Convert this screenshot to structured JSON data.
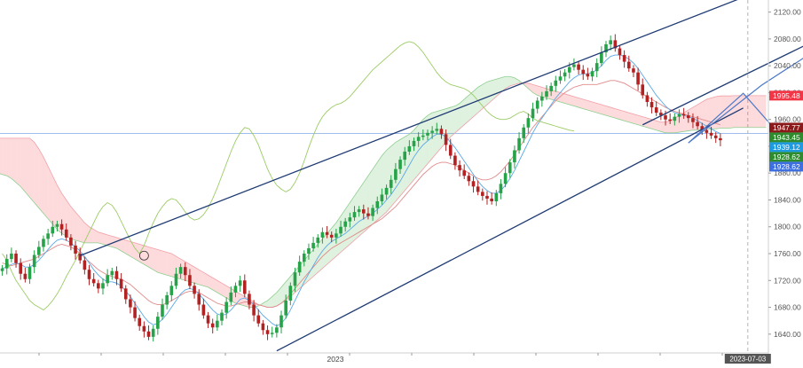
{
  "chart_data": {
    "type": "candlestick",
    "x_axis": {
      "tick_labels": [
        "2023"
      ],
      "crosshair_label": "2023-07-03"
    },
    "y_axis": {
      "ticks": [
        1640,
        1680,
        1720,
        1760,
        1800,
        1840,
        1880,
        1920,
        1960,
        2000,
        2040,
        2080,
        2120
      ],
      "tick_labels": [
        "1640.00",
        "1680.00",
        "1720.00",
        "1760.00",
        "1800.00",
        "1840.00",
        "1880.00",
        "1920.00",
        "1960.00",
        "2000.00",
        "2040.00",
        "2080.00",
        "2120.00"
      ],
      "ylim": [
        1612,
        2138
      ]
    },
    "price_tags": [
      {
        "label": "1995.48",
        "value": 1995.48,
        "color": "#f23645"
      },
      {
        "label": "1947.77",
        "value": 1947.77,
        "color": "#8b1a1a"
      },
      {
        "label": "1943.45",
        "value": 1943.45,
        "color": "#2e8b2e"
      },
      {
        "label": "1939.12",
        "value": 1939.12,
        "color": "#1e9be0"
      },
      {
        "label": "1928.62",
        "value": 1928.62,
        "color": "#2e8b2e"
      },
      {
        "label": "1928.62",
        "value": 1928.62,
        "color": "#3d6fe0"
      }
    ],
    "horizontal_line_value": 1939.12,
    "series": {
      "close": [
        1738,
        1752,
        1760,
        1746,
        1730,
        1722,
        1740,
        1758,
        1770,
        1782,
        1790,
        1800,
        1804,
        1796,
        1784,
        1772,
        1760,
        1750,
        1736,
        1722,
        1716,
        1708,
        1716,
        1728,
        1734,
        1722,
        1708,
        1692,
        1680,
        1664,
        1652,
        1644,
        1636,
        1648,
        1666,
        1684,
        1698,
        1712,
        1730,
        1740,
        1728,
        1712,
        1700,
        1684,
        1668,
        1656,
        1650,
        1660,
        1672,
        1688,
        1702,
        1712,
        1720,
        1700,
        1684,
        1668,
        1656,
        1646,
        1640,
        1642,
        1650,
        1668,
        1690,
        1712,
        1732,
        1748,
        1760,
        1768,
        1776,
        1784,
        1792,
        1788,
        1784,
        1790,
        1800,
        1808,
        1814,
        1822,
        1826,
        1820,
        1816,
        1828,
        1838,
        1848,
        1858,
        1870,
        1886,
        1900,
        1912,
        1920,
        1928,
        1934,
        1936,
        1940,
        1943,
        1946,
        1938,
        1922,
        1906,
        1892,
        1884,
        1876,
        1868,
        1860,
        1852,
        1846,
        1842,
        1838,
        1850,
        1864,
        1880,
        1896,
        1914,
        1932,
        1948,
        1962,
        1976,
        1988,
        1994,
        2002,
        2010,
        2018,
        2024,
        2030,
        2038,
        2042,
        2034,
        2028,
        2024,
        2032,
        2044,
        2060,
        2072,
        2078,
        2066,
        2056,
        2046,
        2036,
        2030,
        2012,
        1996,
        1986,
        1978,
        1970,
        1966,
        1960,
        1958,
        1964,
        1968,
        1966,
        1962,
        1956,
        1950,
        1944,
        1940,
        1936,
        1932,
        1929
      ],
      "tenkan": [
        1738,
        1740,
        1744,
        1746,
        1744,
        1740,
        1740,
        1744,
        1750,
        1758,
        1766,
        1774,
        1780,
        1782,
        1780,
        1776,
        1770,
        1764,
        1756,
        1746,
        1736,
        1728,
        1722,
        1718,
        1718,
        1716,
        1712,
        1704,
        1696,
        1686,
        1676,
        1666,
        1658,
        1654,
        1656,
        1662,
        1670,
        1680,
        1690,
        1700,
        1706,
        1708,
        1706,
        1700,
        1692,
        1684,
        1676,
        1670,
        1668,
        1670,
        1676,
        1684,
        1692,
        1694,
        1690,
        1684,
        1676,
        1668,
        1662,
        1656,
        1652,
        1656,
        1664,
        1676,
        1690,
        1704,
        1718,
        1730,
        1742,
        1754,
        1764,
        1772,
        1778,
        1782,
        1786,
        1790,
        1796,
        1802,
        1808,
        1812,
        1816,
        1820,
        1826,
        1832,
        1840,
        1848,
        1858,
        1868,
        1880,
        1892,
        1904,
        1914,
        1922,
        1928,
        1934,
        1938,
        1938,
        1934,
        1926,
        1918,
        1908,
        1898,
        1888,
        1878,
        1868,
        1860,
        1854,
        1850,
        1850,
        1854,
        1862,
        1872,
        1884,
        1898,
        1912,
        1926,
        1940,
        1952,
        1962,
        1972,
        1982,
        1992,
        2000,
        2008,
        2016,
        2022,
        2026,
        2028,
        2028,
        2030,
        2034,
        2040,
        2048,
        2054,
        2056,
        2056,
        2054,
        2050,
        2044,
        2036,
        2026,
        2016,
        2006,
        1996,
        1988,
        1980,
        1974,
        1970,
        1968,
        1966,
        1964,
        1962,
        1958,
        1954,
        1950,
        1946,
        1942,
        1939
      ],
      "kijun": [
        1746,
        1744,
        1742,
        1744,
        1746,
        1748,
        1750,
        1752,
        1756,
        1760,
        1764,
        1768,
        1772,
        1774,
        1772,
        1770,
        1766,
        1760,
        1754,
        1748,
        1742,
        1736,
        1732,
        1728,
        1726,
        1724,
        1722,
        1718,
        1714,
        1708,
        1702,
        1696,
        1690,
        1686,
        1684,
        1684,
        1686,
        1690,
        1694,
        1698,
        1702,
        1704,
        1704,
        1702,
        1698,
        1694,
        1690,
        1686,
        1684,
        1682,
        1682,
        1684,
        1686,
        1688,
        1688,
        1686,
        1684,
        1682,
        1680,
        1680,
        1682,
        1686,
        1692,
        1700,
        1708,
        1716,
        1724,
        1732,
        1740,
        1748,
        1756,
        1762,
        1768,
        1772,
        1776,
        1780,
        1784,
        1788,
        1792,
        1796,
        1800,
        1804,
        1808,
        1812,
        1818,
        1824,
        1830,
        1838,
        1846,
        1854,
        1862,
        1870,
        1878,
        1884,
        1890,
        1894,
        1896,
        1896,
        1894,
        1892,
        1888,
        1884,
        1880,
        1876,
        1872,
        1870,
        1870,
        1872,
        1876,
        1882,
        1890,
        1898,
        1908,
        1918,
        1928,
        1938,
        1948,
        1956,
        1964,
        1972,
        1980,
        1988,
        1994,
        2000,
        2004,
        2008,
        2010,
        2012,
        2012,
        2012,
        2012,
        2014,
        2016,
        2018,
        2018,
        2016,
        2014,
        2010,
        2006,
        2002,
        1998,
        1994,
        1990,
        1986,
        1982,
        1978,
        1975,
        1972,
        1970,
        1968,
        1966,
        1964,
        1962,
        1960,
        1958,
        1956,
        1954,
        1952
      ],
      "span_a": [
        1880,
        1880,
        1880,
        1878,
        1876,
        1872,
        1866,
        1860,
        1852,
        1844,
        1836,
        1828,
        1820,
        1812,
        1804,
        1796,
        1790,
        1786,
        1782,
        1780,
        1778,
        1776,
        1776,
        1776,
        1776,
        1774,
        1772,
        1770,
        1768,
        1764,
        1760,
        1756,
        1752,
        1748,
        1744,
        1740,
        1736,
        1732,
        1730,
        1728,
        1726,
        1724,
        1722,
        1720,
        1718,
        1716,
        1714,
        1712,
        1710,
        1706,
        1702,
        1698,
        1694,
        1690,
        1686,
        1684,
        1682,
        1680,
        1680,
        1682,
        1686,
        1690,
        1696,
        1702,
        1710,
        1718,
        1726,
        1734,
        1742,
        1750,
        1758,
        1766,
        1774,
        1782,
        1790,
        1798,
        1806,
        1816,
        1826,
        1836,
        1846,
        1856,
        1866,
        1876,
        1886,
        1896,
        1906,
        1914,
        1920,
        1926,
        1930,
        1934,
        1938,
        1944,
        1952,
        1960,
        1966,
        1970,
        1972,
        1974,
        1976,
        1978,
        1980,
        1984,
        1990,
        1996,
        2002,
        2008,
        2012,
        2016,
        2018,
        2020,
        2022,
        2024,
        2024,
        2022,
        2018,
        2012,
        2006,
        2000,
        1996,
        1994,
        1992,
        1990,
        1988,
        1986,
        1984,
        1982,
        1980,
        1978,
        1976,
        1974,
        1972,
        1970,
        1968,
        1966,
        1964,
        1962,
        1960,
        1958,
        1956,
        1954,
        1952,
        1950,
        1948,
        1946,
        1944,
        1942,
        1940,
        1940,
        1940,
        1941,
        1942,
        1943,
        1944,
        1944,
        1945,
        1945,
        1946,
        1946,
        1947,
        1947,
        1947,
        1948,
        1948,
        1948,
        1948,
        1948,
        1948,
        1948,
        1948
      ],
      "span_b": [
        1932,
        1932,
        1932,
        1932,
        1932,
        1932,
        1932,
        1932,
        1932,
        1932,
        1926,
        1916,
        1904,
        1890,
        1876,
        1862,
        1850,
        1840,
        1830,
        1822,
        1814,
        1806,
        1800,
        1796,
        1792,
        1790,
        1788,
        1786,
        1784,
        1782,
        1780,
        1778,
        1776,
        1774,
        1772,
        1770,
        1768,
        1766,
        1764,
        1762,
        1760,
        1756,
        1752,
        1748,
        1744,
        1740,
        1736,
        1732,
        1728,
        1724,
        1720,
        1716,
        1712,
        1708,
        1704,
        1700,
        1696,
        1692,
        1688,
        1684,
        1682,
        1680,
        1680,
        1682,
        1686,
        1690,
        1696,
        1702,
        1708,
        1714,
        1720,
        1726,
        1732,
        1738,
        1744,
        1750,
        1756,
        1762,
        1768,
        1774,
        1780,
        1786,
        1792,
        1798,
        1804,
        1810,
        1816,
        1822,
        1830,
        1838,
        1846,
        1854,
        1862,
        1870,
        1878,
        1886,
        1894,
        1902,
        1910,
        1918,
        1926,
        1934,
        1940,
        1946,
        1952,
        1958,
        1964,
        1970,
        1976,
        1982,
        1988,
        1994,
        2000,
        2006,
        2010,
        2012,
        2014,
        2014,
        2014,
        2012,
        2010,
        2008,
        2006,
        2004,
        2002,
        2000,
        1998,
        1996,
        1994,
        1992,
        1990,
        1988,
        1986,
        1984,
        1982,
        1980,
        1978,
        1976,
        1974,
        1972,
        1970,
        1968,
        1966,
        1964,
        1962,
        1960,
        1958,
        1956,
        1956,
        1958,
        1962,
        1966,
        1970,
        1974,
        1978,
        1982,
        1986,
        1990,
        1992,
        1994,
        1995,
        1995,
        1995,
        1995.48,
        1995.48,
        1995.48,
        1995.48,
        1995.48,
        1995.48,
        1995.48,
        1995.48
      ],
      "chikou": [
        1760,
        1750,
        1734,
        1720,
        1710,
        1700,
        1690,
        1684,
        1680,
        1676,
        1682,
        1690,
        1700,
        1712,
        1726,
        1738,
        1750,
        1764,
        1778,
        1792,
        1806,
        1820,
        1830,
        1836,
        1832,
        1822,
        1808,
        1794,
        1780,
        1768,
        1760,
        1772,
        1790,
        1806,
        1820,
        1830,
        1838,
        1842,
        1840,
        1832,
        1822,
        1814,
        1810,
        1812,
        1818,
        1828,
        1842,
        1858,
        1876,
        1894,
        1912,
        1928,
        1940,
        1948,
        1946,
        1936,
        1922,
        1904,
        1886,
        1872,
        1862,
        1856,
        1852,
        1856,
        1866,
        1880,
        1898,
        1918,
        1936,
        1952,
        1964,
        1972,
        1978,
        1982,
        1984,
        1988,
        1994,
        2002,
        2010,
        2018,
        2026,
        2034,
        2040,
        2046,
        2052,
        2058,
        2064,
        2070,
        2074,
        2076,
        2074,
        2068,
        2060,
        2050,
        2040,
        2030,
        2022,
        2016,
        2012,
        2010,
        2008,
        2006,
        2002,
        1996,
        1988,
        1980,
        1972,
        1966,
        1962,
        1960,
        1960,
        1962,
        1966,
        1970,
        1972,
        1968,
        1962,
        1958,
        1956,
        1954,
        1952,
        1950,
        1948,
        1946,
        1944,
        1943
      ]
    },
    "trend_lines": [
      {
        "name": "channel-upper",
        "from": [
          17,
          1757
        ],
        "to": [
          165,
          2150
        ]
      },
      {
        "name": "channel-lower",
        "from": [
          60,
          1615
        ],
        "to": [
          162,
          1977
        ]
      },
      {
        "name": "channel-mid",
        "from": [
          140,
          1952
        ],
        "to": [
          200,
          2152
        ]
      }
    ],
    "projections": [
      {
        "name": "projection-up",
        "points": [
          [
            150,
            1925
          ],
          [
            166,
            2011
          ],
          [
            190,
            2117
          ]
        ]
      },
      {
        "name": "projection-down",
        "points": [
          [
            150,
            1925
          ],
          [
            162,
            1999
          ],
          [
            170,
            1937
          ]
        ]
      }
    ]
  }
}
